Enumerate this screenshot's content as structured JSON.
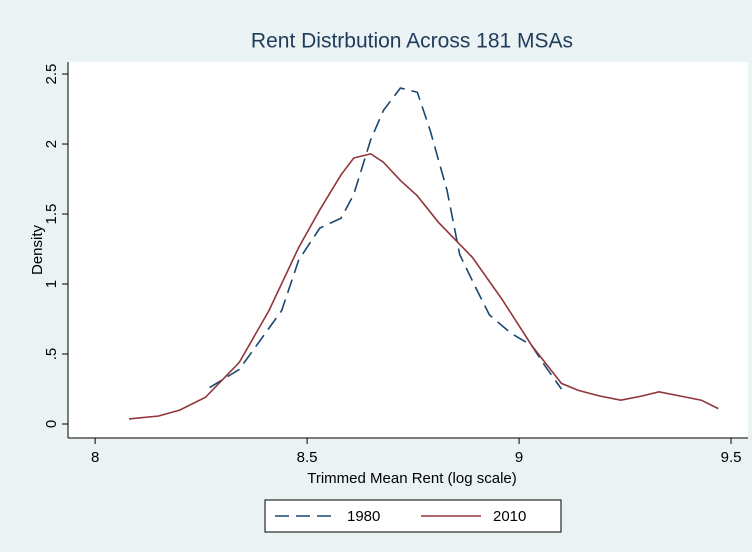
{
  "chart_data": {
    "type": "line",
    "title": "Rent Distrbution Across 181 MSAs",
    "xlabel": "Trimmed Mean Rent (log scale)",
    "ylabel": "Density",
    "xlim": [
      7.936,
      9.54
    ],
    "ylim": [
      -0.1,
      2.586
    ],
    "xticks": [
      8,
      8.5,
      9,
      9.5
    ],
    "yticks": [
      0,
      {
        "value": 0.5,
        "label": ".5"
      },
      1,
      1.5,
      2,
      2.5
    ],
    "legend": "bottom",
    "series": [
      {
        "name": "1980",
        "color": "#1a476f",
        "dash": true,
        "x": [
          8.27,
          8.34,
          8.39,
          8.44,
          8.48,
          8.53,
          8.58,
          8.61,
          8.65,
          8.68,
          8.72,
          8.76,
          8.79,
          8.83,
          8.86,
          8.9,
          8.93,
          8.98,
          9.03,
          9.06,
          9.1
        ],
        "values": [
          0.26,
          0.39,
          0.6,
          0.81,
          1.17,
          1.4,
          1.47,
          1.64,
          2.03,
          2.24,
          2.4,
          2.37,
          2.1,
          1.67,
          1.21,
          0.96,
          0.78,
          0.65,
          0.56,
          0.42,
          0.25
        ]
      },
      {
        "name": "2010",
        "color": "#90353b",
        "dash": false,
        "x": [
          8.08,
          8.15,
          8.2,
          8.26,
          8.34,
          8.41,
          8.48,
          8.53,
          8.58,
          8.61,
          8.65,
          8.68,
          8.72,
          8.76,
          8.81,
          8.89,
          8.96,
          9.03,
          9.1,
          9.14,
          9.19,
          9.24,
          9.29,
          9.33,
          9.38,
          9.43,
          9.47
        ],
        "values": [
          0.036,
          0.057,
          0.1,
          0.19,
          0.44,
          0.81,
          1.26,
          1.53,
          1.78,
          1.9,
          1.93,
          1.87,
          1.74,
          1.63,
          1.44,
          1.19,
          0.89,
          0.56,
          0.29,
          0.24,
          0.2,
          0.17,
          0.2,
          0.23,
          0.2,
          0.17,
          0.11
        ]
      }
    ]
  }
}
